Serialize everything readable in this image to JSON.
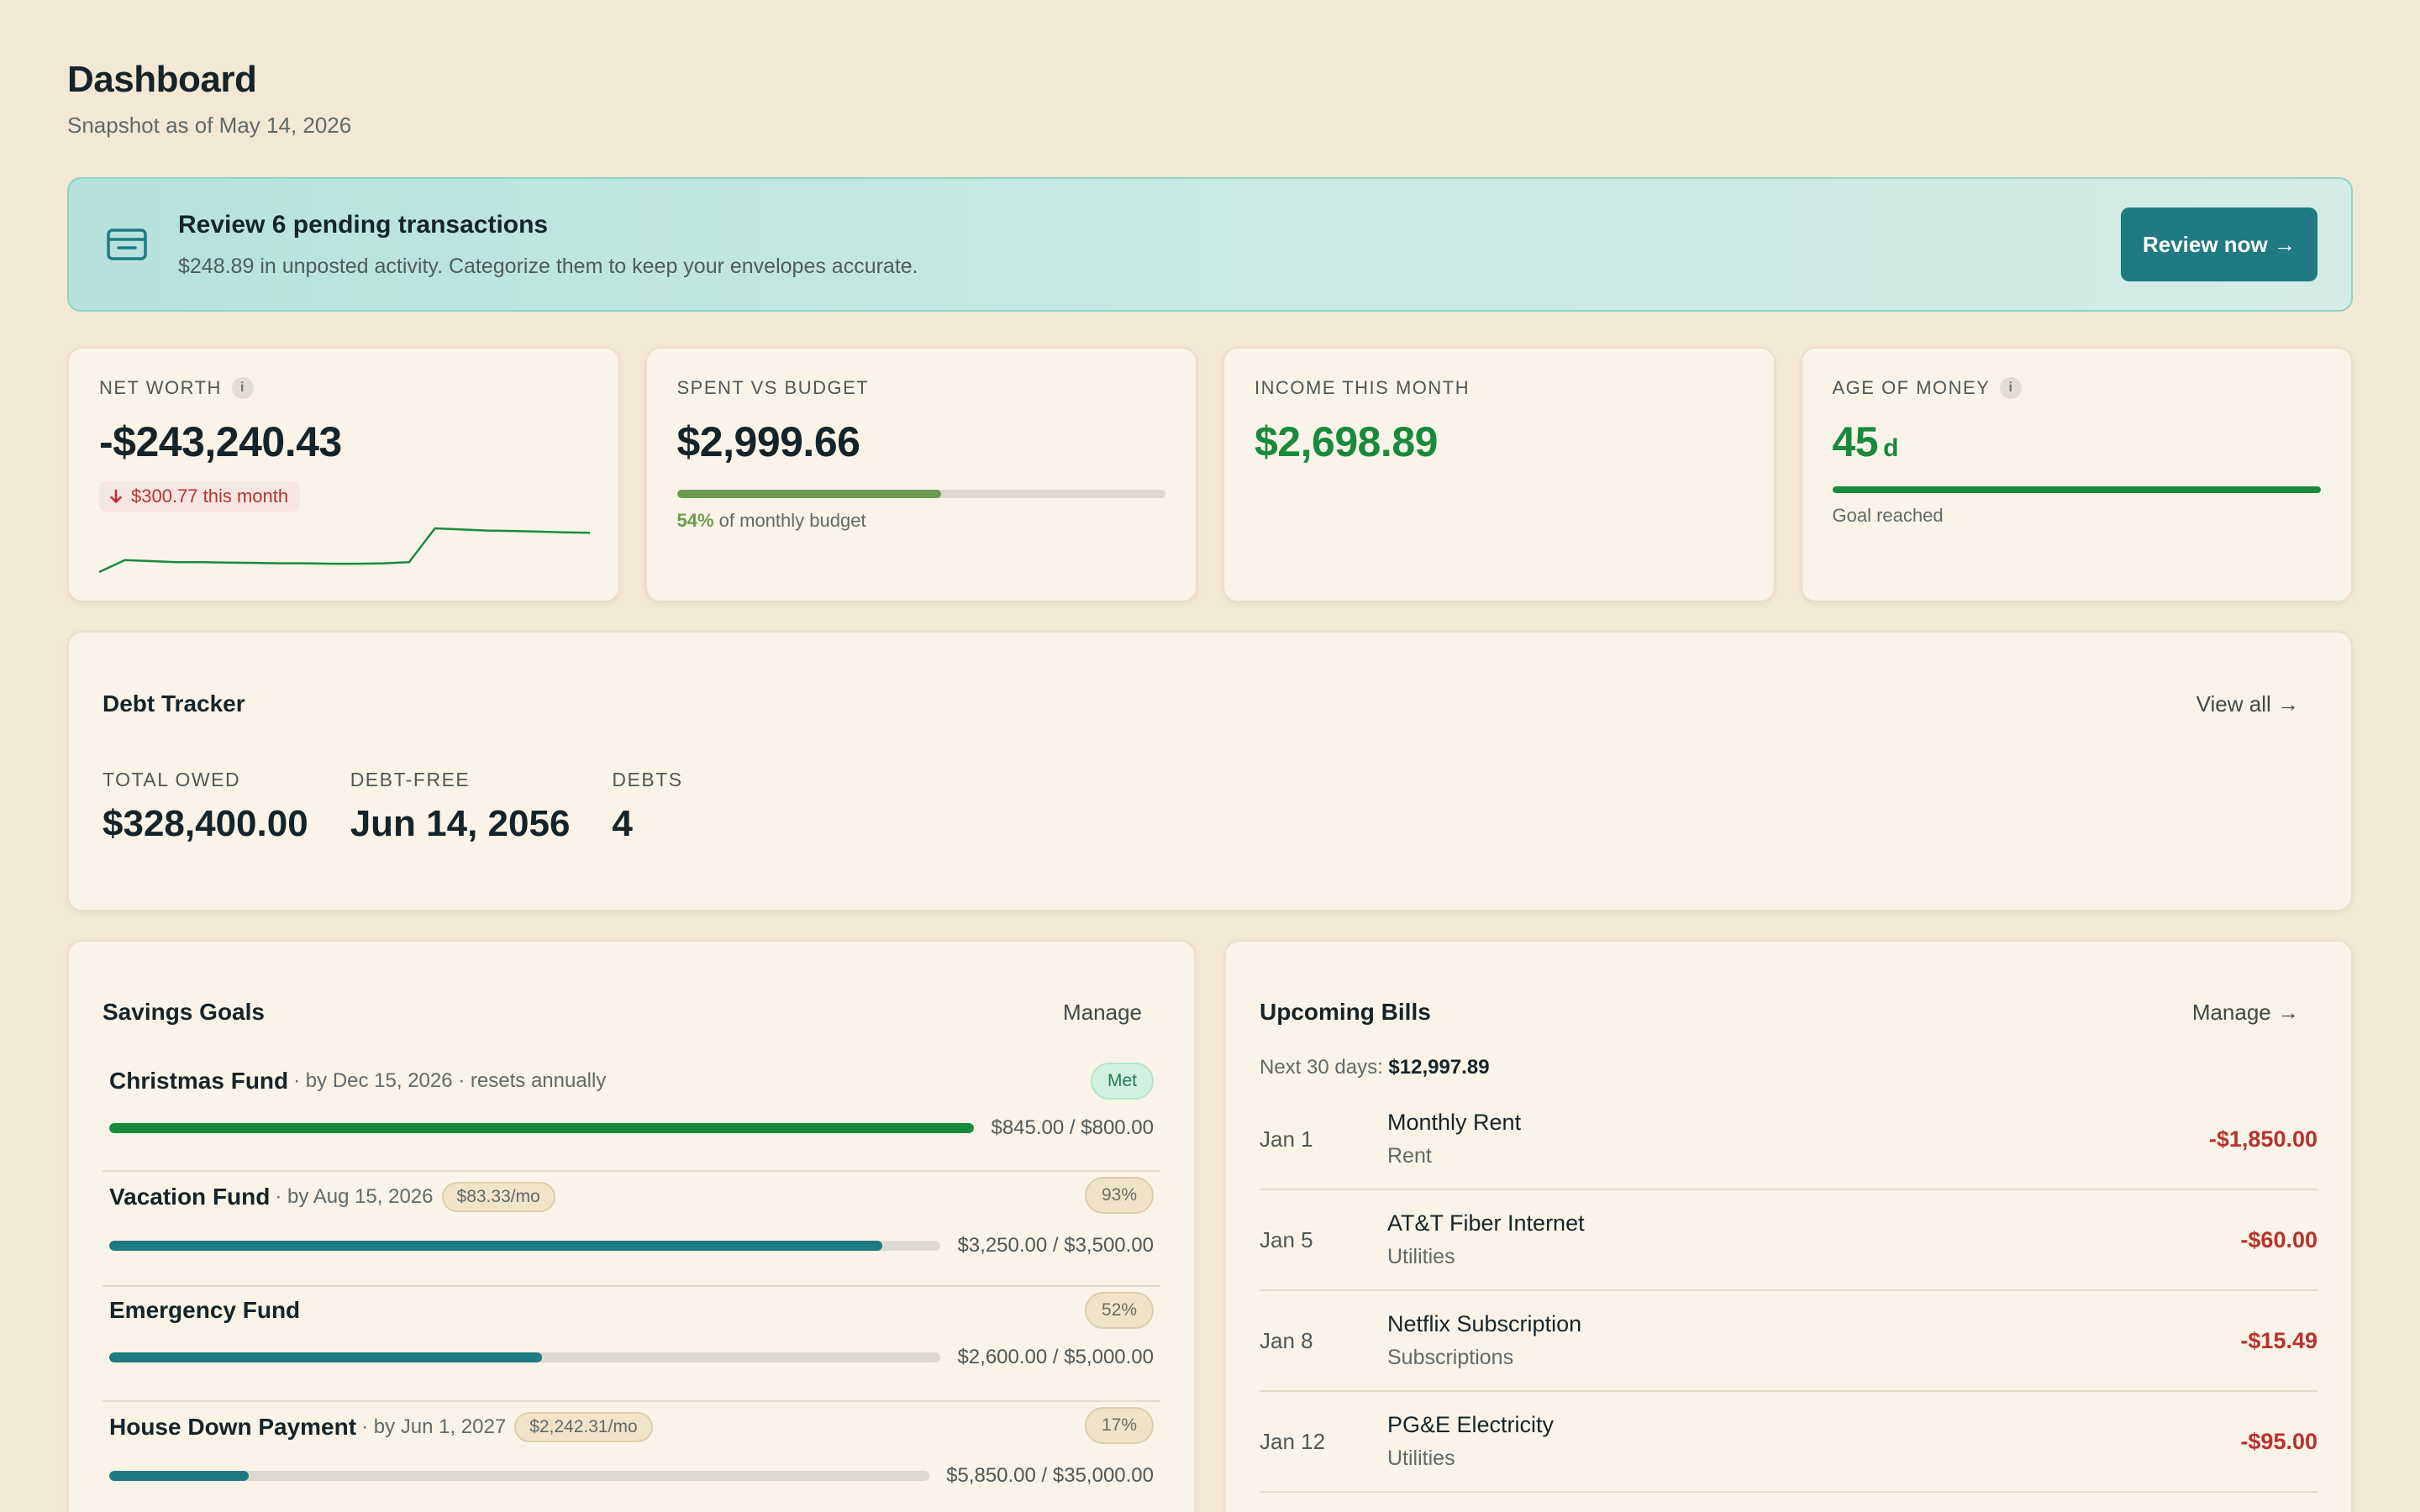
{
  "header": {
    "title": "Dashboard",
    "subtitle": "Snapshot as of May 14, 2026"
  },
  "banner": {
    "icon": "credit-card-icon",
    "title": "Review 6 pending transactions",
    "description": "$248.89 in unposted activity. Categorize them to keep your envelopes accurate.",
    "button_label": "Review now →"
  },
  "stats": {
    "net_worth": {
      "label": "NET WORTH",
      "value": "-$243,240.43",
      "delta": "$300.77 this month",
      "sparkline": [
        0.0,
        0.55,
        0.5,
        0.45,
        0.45,
        0.43,
        0.42,
        0.4,
        0.4,
        0.38,
        0.38,
        0.4,
        0.45,
        2.0,
        1.95,
        1.9,
        1.88,
        1.85,
        1.82,
        1.8
      ]
    },
    "spent_vs_budget": {
      "label": "SPENT VS BUDGET",
      "value": "$2,999.66",
      "percent_label": "54%",
      "note": "of monthly budget",
      "progress": 0.54
    },
    "income": {
      "label": "INCOME THIS MONTH",
      "value": "$2,698.89"
    },
    "age_of_money": {
      "label": "AGE OF MONEY",
      "value": "45",
      "unit": "d",
      "note": "Goal reached",
      "progress": 1.0
    }
  },
  "debt_tracker": {
    "title": "Debt Tracker",
    "link": "View all →",
    "total_owed_label": "TOTAL OWED",
    "total_owed": "$328,400.00",
    "debt_free_label": "DEBT-FREE",
    "debt_free": "Jun 14, 2056",
    "debts_label": "DEBTS",
    "debts": "4"
  },
  "savings_goals": {
    "title": "Savings Goals",
    "link": "Manage",
    "goals": [
      {
        "name": "Christmas Fund",
        "meta": "· by Dec 15, 2026 · resets annually",
        "pill": "",
        "badge": "Met",
        "amount": "$845.00 / $800.00",
        "progress": 1.0,
        "color": "#188a3e"
      },
      {
        "name": "Vacation Fund",
        "meta": "· by Aug 15, 2026",
        "pill": "$83.33/mo",
        "badge": "93%",
        "amount": "$3,250.00 / $3,500.00",
        "progress": 0.93,
        "color": "#1f7a82"
      },
      {
        "name": "Emergency Fund",
        "meta": "",
        "pill": "",
        "badge": "52%",
        "amount": "$2,600.00 / $5,000.00",
        "progress": 0.52,
        "color": "#1f7a82"
      },
      {
        "name": "House Down Payment",
        "meta": "· by Jun 1, 2027",
        "pill": "$2,242.31/mo",
        "badge": "17%",
        "amount": "$5,850.00 / $35,000.00",
        "progress": 0.17,
        "color": "#1f7a82"
      }
    ]
  },
  "upcoming_bills": {
    "title": "Upcoming Bills",
    "link": "Manage →",
    "summary_label": "Next 30 days:",
    "summary_value": "$12,997.89",
    "bills": [
      {
        "date": "Jan 1",
        "name": "Monthly Rent",
        "category": "Rent",
        "amount": "-$1,850.00"
      },
      {
        "date": "Jan 5",
        "name": "AT&T Fiber Internet",
        "category": "Utilities",
        "amount": "-$60.00"
      },
      {
        "date": "Jan 8",
        "name": "Netflix Subscription",
        "category": "Subscriptions",
        "amount": "-$15.49"
      },
      {
        "date": "Jan 12",
        "name": "PG&E Electricity",
        "category": "Utilities",
        "amount": "-$95.00"
      }
    ]
  },
  "colors": {
    "accent": "#1f7a82",
    "positive": "#188a3e",
    "negative": "#b8322e",
    "budget_bar": "#6c9a52",
    "background": "#f3e8d3"
  }
}
